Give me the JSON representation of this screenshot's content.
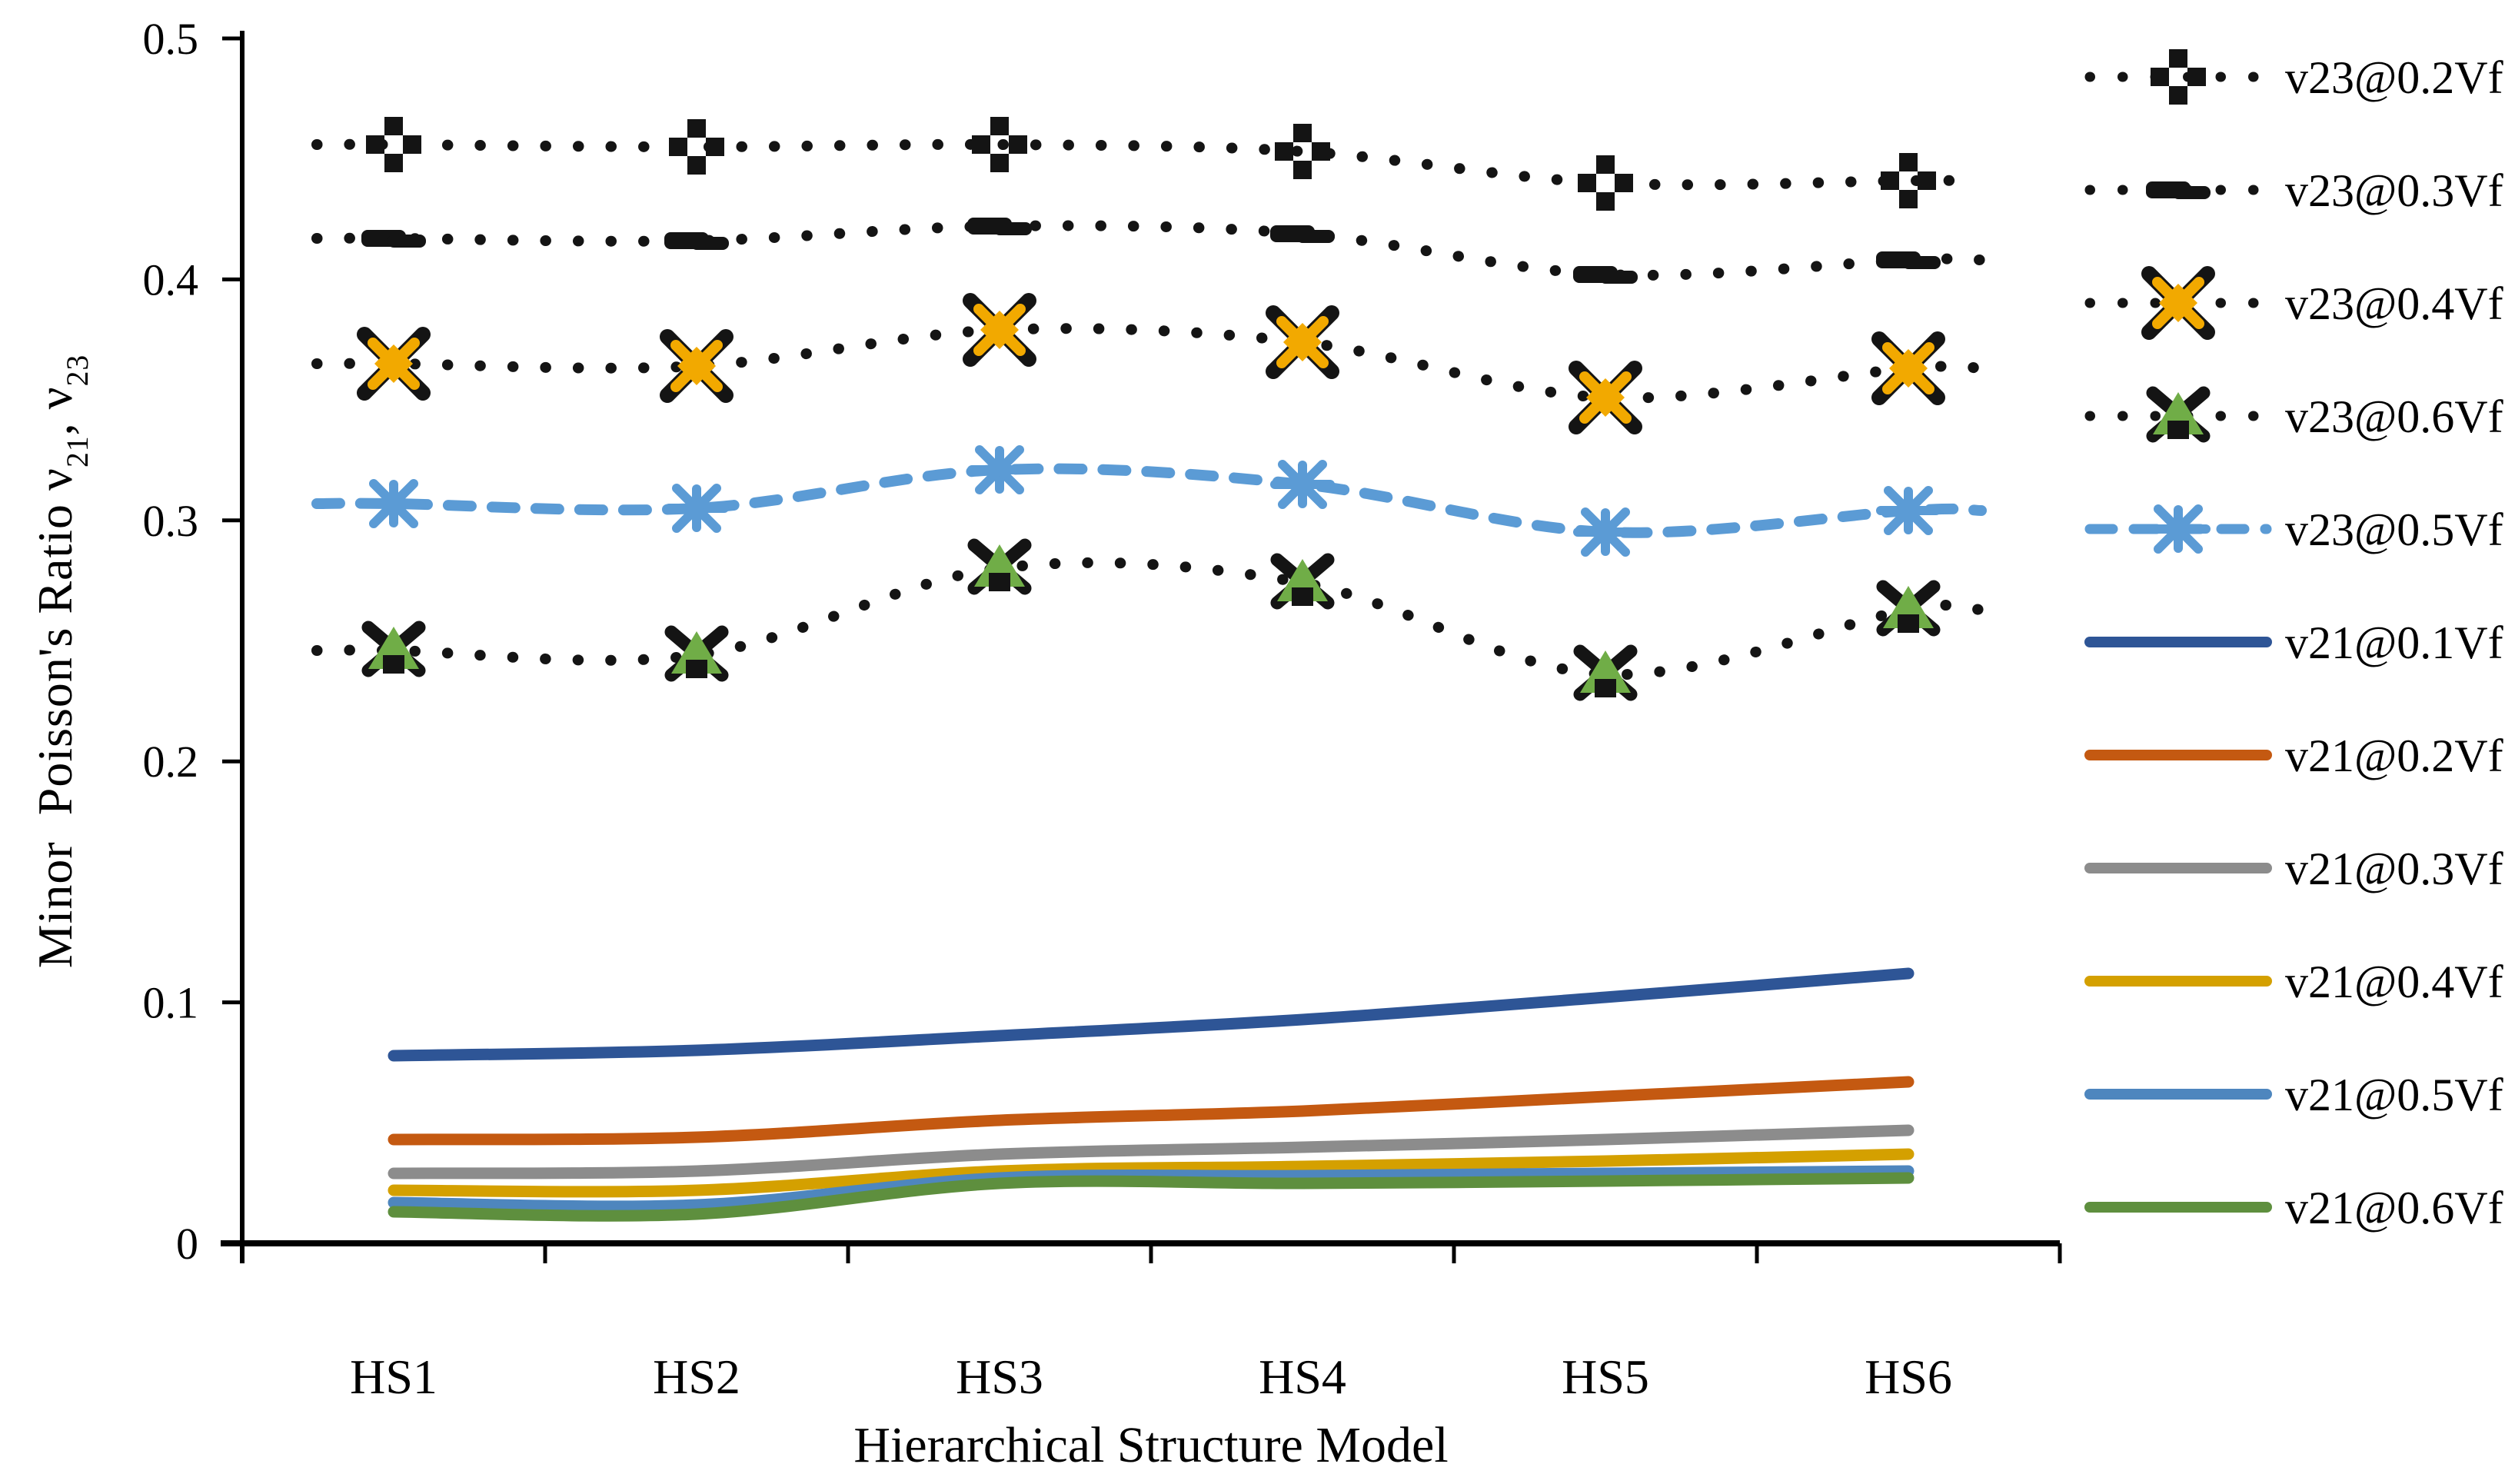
{
  "figure": {
    "background": "#ffffff",
    "text_color": "#000000",
    "y_axis_title": {
      "prefix": "Minor  Poisson's Ratio ν",
      "sub1": "21",
      "mid": ", ν",
      "sub2": "23"
    }
  },
  "chart_data": {
    "type": "line",
    "title": "",
    "xlabel": "Hierarchical Structure Model",
    "ylabel": "Minor Poisson's Ratio ν21, ν23",
    "categories": [
      "HS1",
      "HS2",
      "HS3",
      "HS4",
      "HS5",
      "HS6"
    ],
    "ylim": [
      0,
      0.5
    ],
    "yticks": [
      0,
      0.1,
      0.2,
      0.3,
      0.4,
      0.5
    ],
    "ytick_labels": [
      "0",
      "0.1",
      "0.2",
      "0.3",
      "0.4",
      "0.5"
    ],
    "grid": false,
    "legend_position": "right",
    "axis_color": "#000000",
    "series": [
      {
        "name": "v23@0.2Vf",
        "line": "dotted",
        "color": "#141414",
        "marker": "plus",
        "marker_color": "#141414",
        "values": [
          0.456,
          0.455,
          0.456,
          0.453,
          0.44,
          0.441
        ]
      },
      {
        "name": "v23@0.3Vf",
        "line": "dotted",
        "color": "#141414",
        "marker": "dash",
        "marker_color": "#141414",
        "values": [
          0.417,
          0.416,
          0.422,
          0.419,
          0.402,
          0.408
        ]
      },
      {
        "name": "v23@0.4Vf",
        "line": "dotted",
        "color": "#141414",
        "marker": "x",
        "marker_color": "#F2A900",
        "values": [
          0.365,
          0.364,
          0.379,
          0.374,
          0.351,
          0.363
        ]
      },
      {
        "name": "v23@0.6Vf",
        "line": "dotted",
        "color": "#141414",
        "marker": "triangle",
        "marker_color": "#70AD47",
        "values": [
          0.246,
          0.244,
          0.28,
          0.274,
          0.236,
          0.263
        ]
      },
      {
        "name": "v23@0.5Vf",
        "line": "dashed",
        "color": "#5B9BD5",
        "marker": "asterisk",
        "marker_color": "#5B9BD5",
        "values": [
          0.307,
          0.305,
          0.321,
          0.315,
          0.295,
          0.304
        ]
      },
      {
        "name": "v21@0.1Vf",
        "line": "solid",
        "color": "#2E5596",
        "marker": "none",
        "marker_color": "#2E5596",
        "values": [
          0.078,
          0.08,
          0.086,
          0.093,
          0.102,
          0.112
        ]
      },
      {
        "name": "v21@0.2Vf",
        "line": "solid",
        "color": "#C45911",
        "marker": "none",
        "marker_color": "#C45911",
        "values": [
          0.043,
          0.044,
          0.051,
          0.055,
          0.061,
          0.067
        ]
      },
      {
        "name": "v21@0.3Vf",
        "line": "solid",
        "color": "#8C8C8C",
        "marker": "none",
        "marker_color": "#8C8C8C",
        "values": [
          0.029,
          0.03,
          0.037,
          0.04,
          0.043,
          0.047
        ]
      },
      {
        "name": "v21@0.4Vf",
        "line": "solid",
        "color": "#D4A000",
        "marker": "none",
        "marker_color": "#D4A000",
        "values": [
          0.022,
          0.022,
          0.03,
          0.032,
          0.034,
          0.037
        ]
      },
      {
        "name": "v21@0.5Vf",
        "line": "solid",
        "color": "#4E86BE",
        "marker": "none",
        "marker_color": "#4E86BE",
        "values": [
          0.017,
          0.016,
          0.027,
          0.028,
          0.029,
          0.03
        ]
      },
      {
        "name": "v21@0.6Vf",
        "line": "solid",
        "color": "#5E8F3E",
        "marker": "none",
        "marker_color": "#5E8F3E",
        "values": [
          0.013,
          0.012,
          0.025,
          0.025,
          0.026,
          0.027
        ]
      }
    ]
  }
}
